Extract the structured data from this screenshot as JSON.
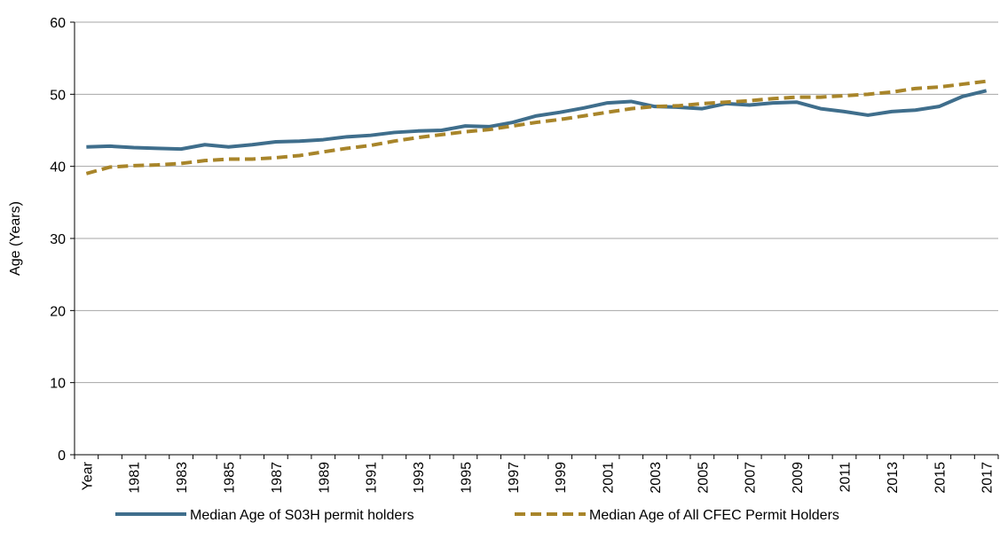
{
  "chart_data": {
    "type": "line",
    "y_label": "Age (Years)",
    "categories": [
      "Year",
      null,
      "1981",
      null,
      "1983",
      null,
      "1985",
      null,
      "1987",
      null,
      "1989",
      null,
      "1991",
      null,
      "1993",
      null,
      "1995",
      null,
      "1997",
      null,
      "1999",
      null,
      "2001",
      null,
      "2003",
      null,
      "2005",
      null,
      "2007",
      null,
      "2009",
      null,
      "2011",
      null,
      "2013",
      null,
      "2015",
      null,
      "2017"
    ],
    "series": [
      {
        "name": "Median Age of S03H permit holders",
        "color": "#3f6e8c",
        "dash": false,
        "values": [
          42.7,
          42.8,
          42.6,
          42.5,
          42.4,
          43.0,
          42.7,
          43.0,
          43.4,
          43.5,
          43.7,
          44.1,
          44.3,
          44.7,
          44.9,
          45.0,
          45.6,
          45.5,
          46.1,
          47.0,
          47.5,
          48.1,
          48.8,
          49.0,
          48.3,
          48.2,
          48.0,
          48.7,
          48.5,
          48.8,
          48.9,
          48.0,
          47.6,
          47.1,
          47.6,
          47.8,
          48.3,
          49.7,
          50.5
        ]
      },
      {
        "name": "Median Age of All CFEC Permit Holders",
        "color": "#a8852a",
        "dash": true,
        "values": [
          39.0,
          39.9,
          40.1,
          40.2,
          40.4,
          40.8,
          41.0,
          41.0,
          41.2,
          41.5,
          42.0,
          42.5,
          42.9,
          43.5,
          44.0,
          44.4,
          44.8,
          45.1,
          45.6,
          46.1,
          46.5,
          47.0,
          47.5,
          48.0,
          48.3,
          48.4,
          48.7,
          48.9,
          49.1,
          49.4,
          49.6,
          49.6,
          49.8,
          50.0,
          50.3,
          50.8,
          51.0,
          51.4,
          51.8
        ]
      }
    ],
    "ylim": [
      0,
      60
    ],
    "yticks": [
      0,
      10,
      20,
      30,
      40,
      50,
      60
    ],
    "grid": true,
    "legend": "bottom"
  }
}
